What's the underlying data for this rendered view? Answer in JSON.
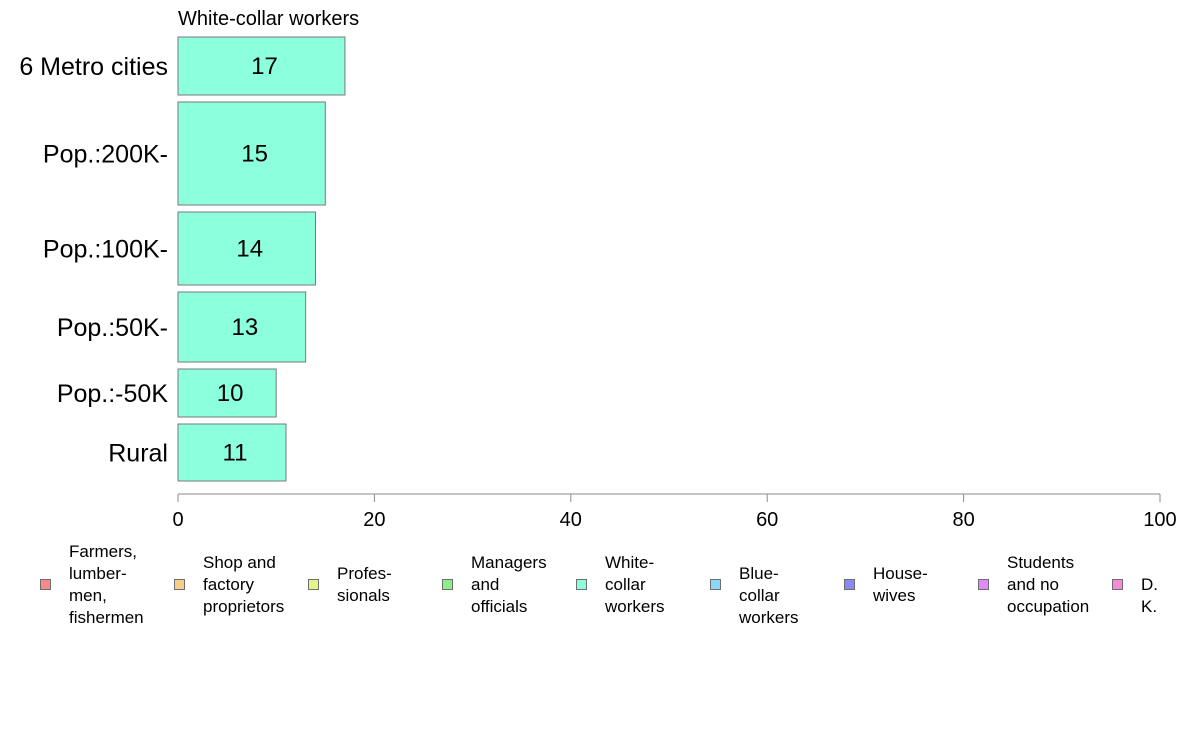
{
  "chart_data": {
    "type": "bar",
    "orientation": "horizontal",
    "title": "White-collar workers",
    "categories": [
      "6 Metro cities",
      "Pop.:200K-",
      "Pop.:100K-",
      "Pop.:50K-",
      "Pop.:-50K",
      "Rural"
    ],
    "values": [
      17,
      15,
      14,
      13,
      10,
      11
    ],
    "bar_heights_relative": [
      58,
      103,
      73,
      70,
      48,
      57
    ],
    "xlim": [
      0,
      100
    ],
    "x_ticks": [
      "0",
      "20",
      "40",
      "60",
      "80",
      "100"
    ],
    "grid": false,
    "bar_color": "#8cffdd",
    "legend_position": "bottom",
    "legend": [
      {
        "label": "Farmers,\nlumber-\nmen,\nfishermen",
        "color": "#f58a8a"
      },
      {
        "label": "Shop and\nfactory\nproprietors",
        "color": "#f5d08a"
      },
      {
        "label": "Profes-\nsionals",
        "color": "#e2f58a"
      },
      {
        "label": "Managers\nand\nofficials",
        "color": "#8cf08a"
      },
      {
        "label": "White-\ncollar\nworkers",
        "color": "#8cffdd"
      },
      {
        "label": "Blue-collar\nworkers",
        "color": "#8ad8f5"
      },
      {
        "label": "House-\nwives",
        "color": "#8a8af5"
      },
      {
        "label": "Students\nand no\noccupation",
        "color": "#df8af5"
      },
      {
        "label": "D. K.",
        "color": "#f58ad6"
      }
    ]
  }
}
